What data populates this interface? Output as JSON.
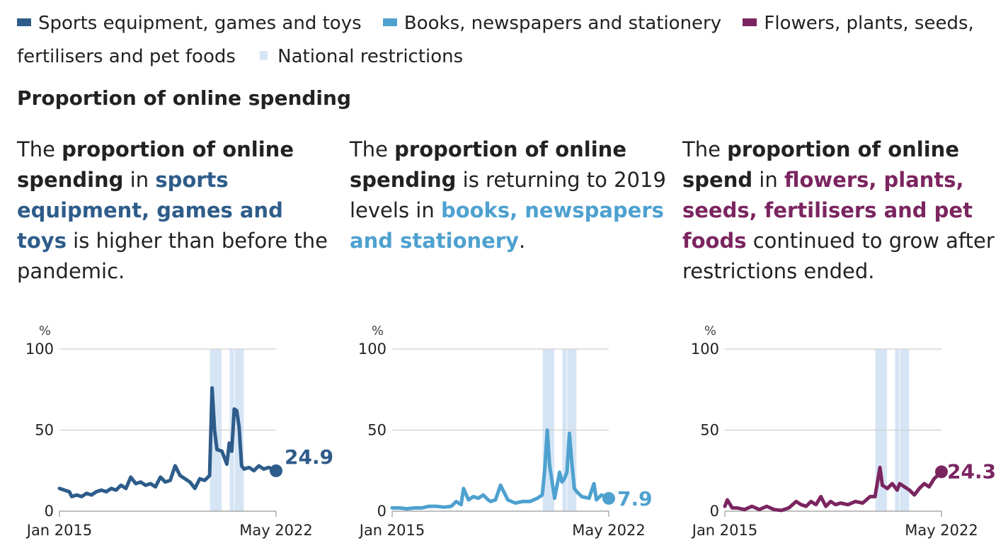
{
  "legend": {
    "items": [
      {
        "label": "Sports equipment, games and toys",
        "color": "#2e5c8a"
      },
      {
        "label": "Books, newspapers and stationery",
        "color": "#4ea1cf"
      },
      {
        "label": "Flowers, plants, seeds, fertilisers and pet foods",
        "color": "#7b2560"
      }
    ],
    "restrictions_label": "National restrictions",
    "restrictions_color": "#d6e5f5"
  },
  "section_title": "Proportion of online spending",
  "headlines": [
    {
      "pre": "The ",
      "b1": "proportion of online spending",
      "mid": " in ",
      "hl": "sports equipment, games and toys",
      "post": " is higher than before the pandemic.",
      "color": "#2e5c8a"
    },
    {
      "pre": "The ",
      "b1": "proportion of online spending",
      "mid": " is returning to 2019 levels in ",
      "hl": "books, newspapers and stationery",
      "post": ".",
      "color": "#4ea1cf"
    },
    {
      "pre": "The ",
      "b1": "proportion of online spend",
      "mid": " in ",
      "hl": "flowers, plants, seeds, fertilisers and pet foods",
      "post": " continued to grow after restrictions ended.",
      "color": "#7b2560"
    }
  ],
  "chart_data": [
    {
      "type": "line",
      "series": [
        {
          "name": "Sports equipment, games and toys",
          "color": "#2e5c8a",
          "x": [
            "2015-01",
            "2015-03",
            "2015-05",
            "2015-06",
            "2015-08",
            "2015-10",
            "2015-12",
            "2016-02",
            "2016-04",
            "2016-06",
            "2016-08",
            "2016-10",
            "2016-12",
            "2017-02",
            "2017-04",
            "2017-06",
            "2017-08",
            "2017-10",
            "2017-12",
            "2018-02",
            "2018-04",
            "2018-06",
            "2018-08",
            "2018-10",
            "2018-12",
            "2019-02",
            "2019-04",
            "2019-06",
            "2019-08",
            "2019-10",
            "2019-12",
            "2020-02",
            "2020-03",
            "2020-04",
            "2020-05",
            "2020-07",
            "2020-09",
            "2020-10",
            "2020-11",
            "2020-12",
            "2021-01",
            "2021-02",
            "2021-03",
            "2021-04",
            "2021-06",
            "2021-08",
            "2021-10",
            "2021-12",
            "2022-02",
            "2022-05"
          ],
          "y": [
            14,
            13,
            12,
            9,
            10,
            9,
            11,
            10,
            12,
            13,
            12,
            14,
            13,
            16,
            14,
            21,
            17,
            18,
            16,
            17,
            15,
            21,
            18,
            19,
            28,
            22,
            20,
            18,
            14,
            20,
            19,
            22,
            76,
            50,
            38,
            37,
            29,
            42,
            37,
            63,
            62,
            52,
            28,
            26,
            27,
            25,
            28,
            26,
            27,
            24.9
          ]
        }
      ],
      "unit": "%",
      "x_tick_labels": [
        "Jan 2015",
        "May 2022"
      ],
      "y_ticks": [
        0,
        50,
        100
      ],
      "ylim": [
        0,
        100
      ],
      "restrictions": [
        [
          "2020-03",
          "2020-06"
        ],
        [
          "2020-11",
          "2020-11"
        ],
        [
          "2021-01",
          "2021-03"
        ]
      ],
      "end_label": "24.9",
      "grid": true
    },
    {
      "type": "line",
      "series": [
        {
          "name": "Books, newspapers and stationery",
          "color": "#4ea1cf",
          "x": [
            "2015-01",
            "2015-04",
            "2015-07",
            "2015-10",
            "2016-01",
            "2016-04",
            "2016-07",
            "2016-10",
            "2017-01",
            "2017-03",
            "2017-05",
            "2017-06",
            "2017-08",
            "2017-10",
            "2017-12",
            "2018-02",
            "2018-04",
            "2018-05",
            "2018-07",
            "2018-09",
            "2018-12",
            "2019-03",
            "2019-06",
            "2019-09",
            "2019-12",
            "2020-02",
            "2020-03",
            "2020-04",
            "2020-05",
            "2020-07",
            "2020-09",
            "2020-10",
            "2020-11",
            "2020-12",
            "2021-01",
            "2021-02",
            "2021-03",
            "2021-04",
            "2021-06",
            "2021-09",
            "2021-11",
            "2021-12",
            "2022-02",
            "2022-05"
          ],
          "y": [
            2,
            2,
            1.5,
            2,
            2,
            3,
            3,
            2.5,
            3,
            6,
            4,
            14,
            7,
            9,
            8,
            10,
            7,
            6,
            7,
            16,
            7,
            5,
            6,
            6,
            8,
            10,
            26,
            50,
            28,
            8,
            24,
            18,
            20,
            24,
            48,
            30,
            14,
            12,
            9,
            8,
            17,
            7,
            10,
            7.9
          ]
        }
      ],
      "unit": "%",
      "x_tick_labels": [
        "Jan 2015",
        "May 2022"
      ],
      "y_ticks": [
        0,
        50,
        100
      ],
      "ylim": [
        0,
        100
      ],
      "restrictions": [
        [
          "2020-03",
          "2020-06"
        ],
        [
          "2020-11",
          "2020-11"
        ],
        [
          "2021-01",
          "2021-03"
        ]
      ],
      "end_label": "7.9",
      "grid": true
    },
    {
      "type": "line",
      "series": [
        {
          "name": "Flowers, plants, seeds, fertilisers and pet foods",
          "color": "#7b2560",
          "x": [
            "2015-01",
            "2015-02",
            "2015-04",
            "2015-06",
            "2015-09",
            "2015-12",
            "2016-03",
            "2016-06",
            "2016-09",
            "2016-12",
            "2017-03",
            "2017-06",
            "2017-08",
            "2017-10",
            "2017-12",
            "2018-02",
            "2018-04",
            "2018-06",
            "2018-08",
            "2018-10",
            "2018-12",
            "2019-03",
            "2019-06",
            "2019-09",
            "2019-12",
            "2020-02",
            "2020-03",
            "2020-04",
            "2020-05",
            "2020-07",
            "2020-09",
            "2020-11",
            "2020-12",
            "2021-02",
            "2021-04",
            "2021-06",
            "2021-08",
            "2021-10",
            "2021-12",
            "2022-02",
            "2022-05"
          ],
          "y": [
            3,
            7,
            2,
            2,
            1,
            3,
            1,
            3,
            1,
            0.5,
            2,
            6,
            4,
            3,
            6,
            4,
            9,
            3,
            6,
            4,
            5,
            4,
            6,
            5,
            9,
            9,
            18,
            27,
            16,
            14,
            17,
            13,
            17,
            15,
            13,
            10,
            14,
            17,
            15,
            20,
            24.3
          ]
        }
      ],
      "unit": "%",
      "x_tick_labels": [
        "Jan 2015",
        "May 2022"
      ],
      "y_ticks": [
        0,
        50,
        100
      ],
      "ylim": [
        0,
        100
      ],
      "restrictions": [
        [
          "2020-03",
          "2020-06"
        ],
        [
          "2020-11",
          "2020-11"
        ],
        [
          "2021-01",
          "2021-03"
        ]
      ],
      "end_label": "24.3",
      "grid": true
    }
  ]
}
